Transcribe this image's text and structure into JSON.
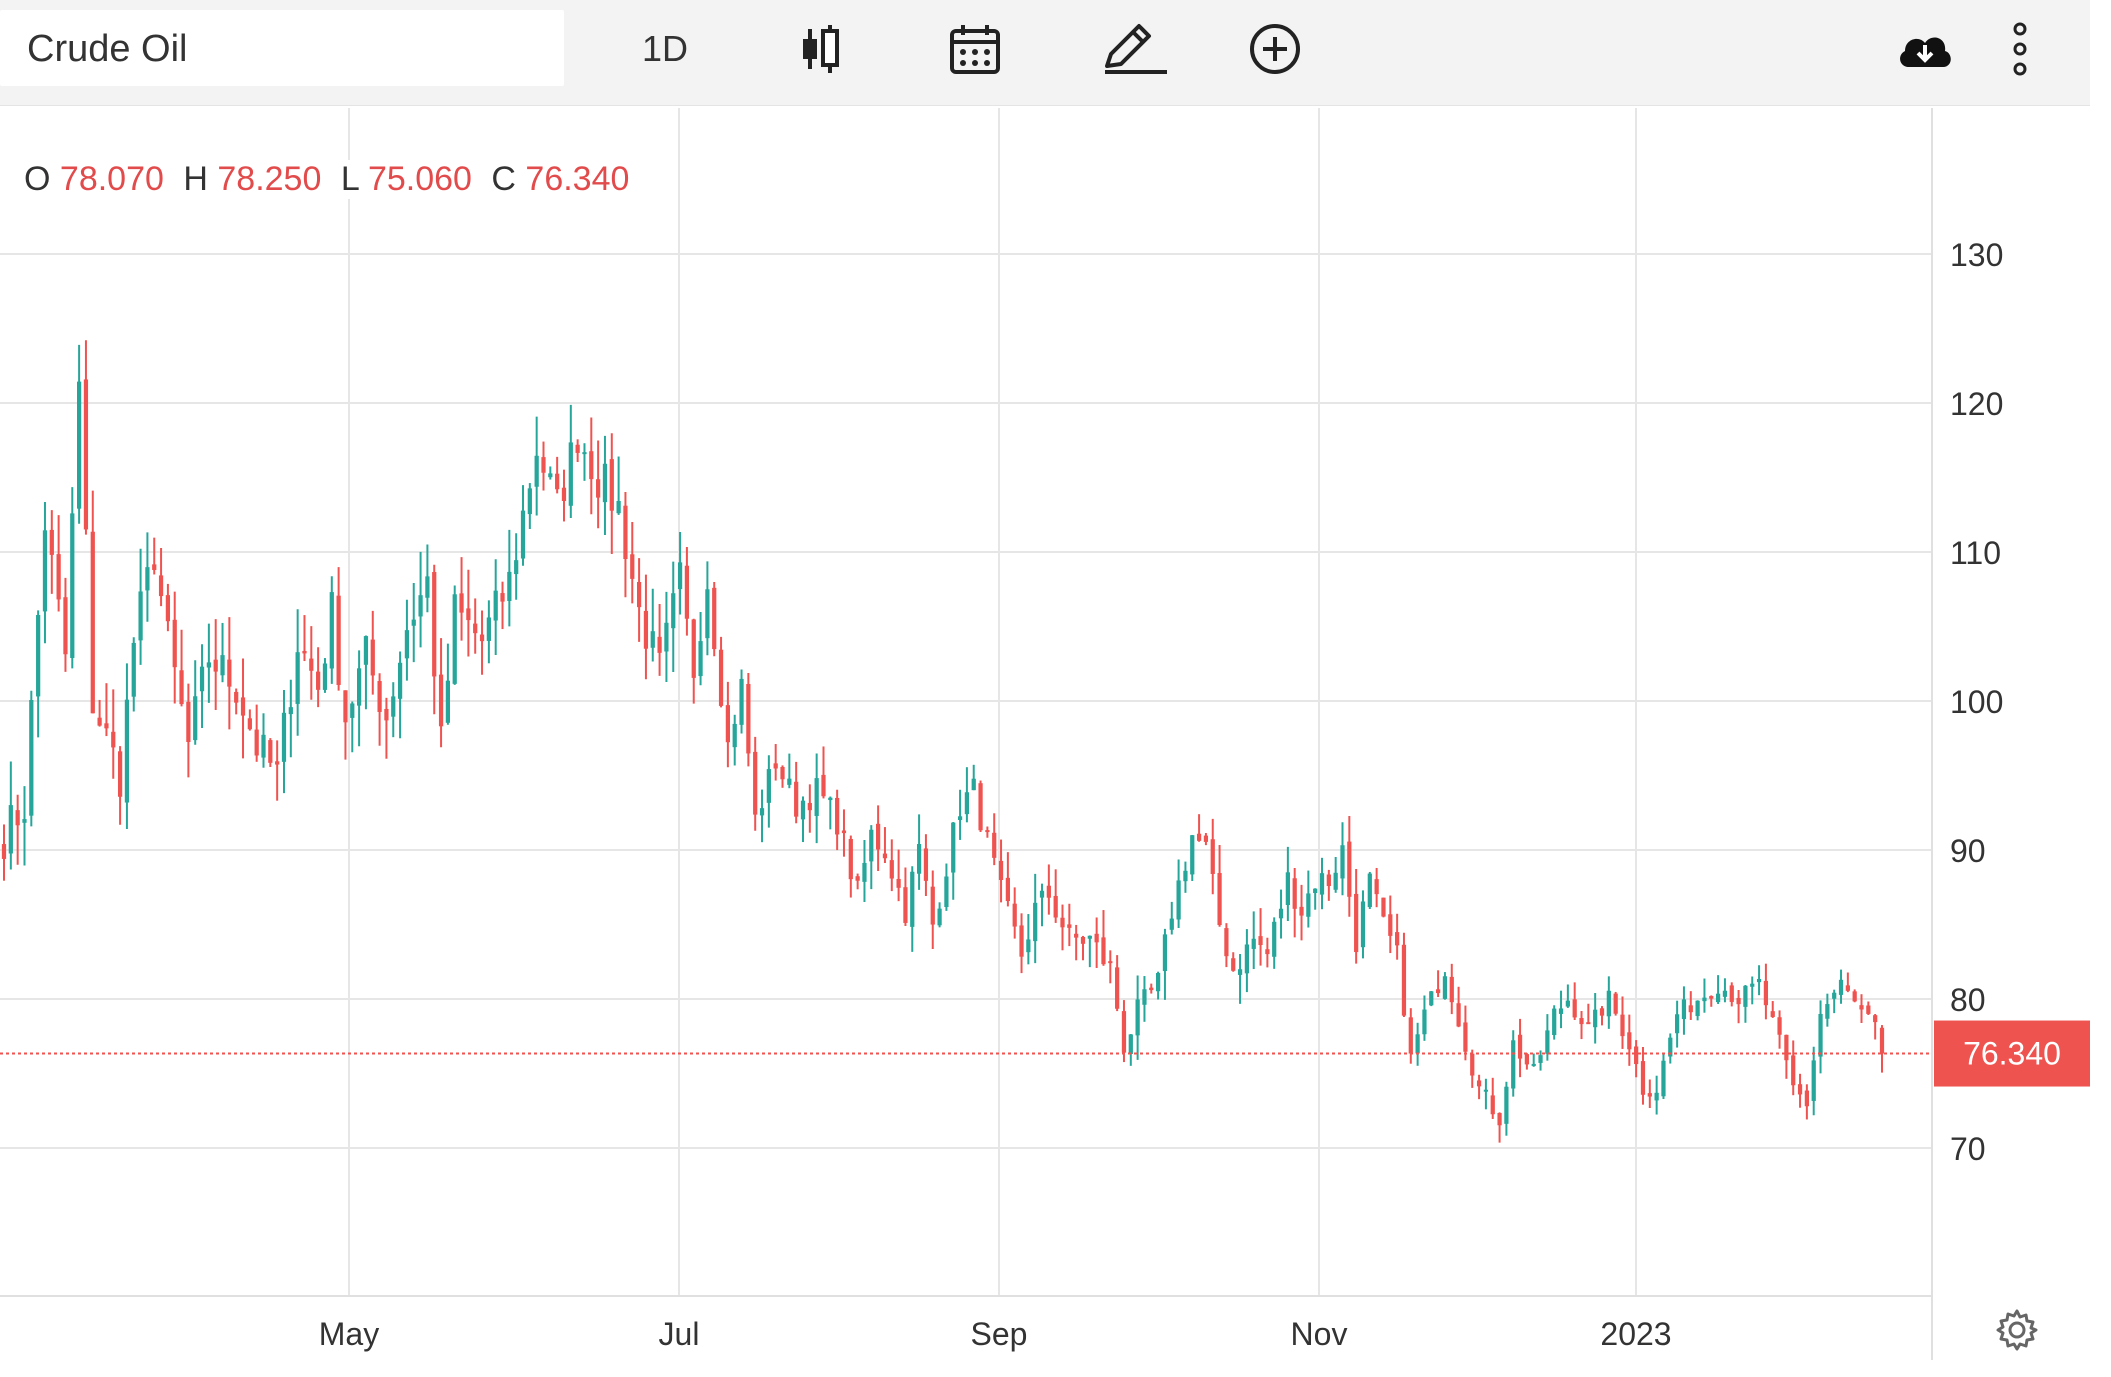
{
  "toolbar": {
    "symbol": "Crude Oil",
    "interval": "1D",
    "icons": [
      "candlestick-icon",
      "calendar-icon",
      "pencil-draw-icon",
      "add-circle-icon",
      "cloud-download-icon",
      "more-vertical-icon"
    ]
  },
  "ohlc": {
    "o_label": "O",
    "o_value": "78.070",
    "h_label": "H",
    "h_value": "78.250",
    "l_label": "L",
    "l_value": "75.060",
    "c_label": "C",
    "c_value": "76.340"
  },
  "colors": {
    "up": "#26a69a",
    "down": "#ef5350",
    "grid": "#e6e6e6",
    "price_tag": "#ef5350"
  },
  "chart_data": {
    "type": "candlestick",
    "title": "Crude Oil",
    "interval": "1D",
    "y_ticks": [
      130,
      120,
      110,
      100,
      90,
      80,
      70
    ],
    "ylim": [
      60,
      140
    ],
    "x_ticks": [
      "May",
      "Jul",
      "Sep",
      "Nov",
      "2023"
    ],
    "last_price": 76.34,
    "last_price_label": "76.340",
    "grid": true,
    "anchors": [
      [
        0,
        91
      ],
      [
        3,
        93
      ],
      [
        6,
        112
      ],
      [
        9,
        103
      ],
      [
        11,
        121
      ],
      [
        13,
        100
      ],
      [
        17,
        95
      ],
      [
        19,
        104
      ],
      [
        22,
        110
      ],
      [
        24,
        104
      ],
      [
        27,
        97
      ],
      [
        30,
        103
      ],
      [
        34,
        101
      ],
      [
        37,
        97
      ],
      [
        40,
        95
      ],
      [
        43,
        104
      ],
      [
        46,
        101
      ],
      [
        48,
        106
      ],
      [
        50,
        99
      ],
      [
        53,
        103
      ],
      [
        56,
        99
      ],
      [
        59,
        105
      ],
      [
        62,
        108
      ],
      [
        64,
        97
      ],
      [
        66,
        106
      ],
      [
        70,
        104
      ],
      [
        74,
        108
      ],
      [
        78,
        117
      ],
      [
        81,
        113
      ],
      [
        84,
        118
      ],
      [
        87,
        115
      ],
      [
        90,
        113
      ],
      [
        93,
        106
      ],
      [
        96,
        102
      ],
      [
        99,
        108
      ],
      [
        101,
        102
      ],
      [
        103,
        108
      ],
      [
        106,
        97
      ],
      [
        108,
        101
      ],
      [
        110,
        92
      ],
      [
        113,
        96
      ],
      [
        116,
        93
      ],
      [
        119,
        94
      ],
      [
        122,
        92
      ],
      [
        125,
        87
      ],
      [
        127,
        91
      ],
      [
        129,
        90
      ],
      [
        132,
        86
      ],
      [
        134,
        90
      ],
      [
        136,
        85
      ],
      [
        138,
        89
      ],
      [
        140,
        93
      ],
      [
        142,
        94
      ],
      [
        146,
        87
      ],
      [
        149,
        83
      ],
      [
        151,
        86
      ],
      [
        153,
        87
      ],
      [
        156,
        84
      ],
      [
        159,
        84
      ],
      [
        162,
        82
      ],
      [
        164,
        77
      ],
      [
        166,
        79
      ],
      [
        169,
        81
      ],
      [
        171,
        86
      ],
      [
        174,
        91
      ],
      [
        176,
        90
      ],
      [
        178,
        85
      ],
      [
        180,
        82
      ],
      [
        183,
        84
      ],
      [
        185,
        83
      ],
      [
        188,
        88
      ],
      [
        190,
        86
      ],
      [
        192,
        88
      ],
      [
        194,
        88
      ],
      [
        196,
        90
      ],
      [
        198,
        84
      ],
      [
        200,
        88
      ],
      [
        202,
        85
      ],
      [
        204,
        83
      ],
      [
        206,
        76
      ],
      [
        208,
        79
      ],
      [
        211,
        82
      ],
      [
        214,
        77
      ],
      [
        216,
        74
      ],
      [
        219,
        72
      ],
      [
        221,
        77
      ],
      [
        224,
        75
      ],
      [
        227,
        79
      ],
      [
        229,
        80
      ],
      [
        232,
        78
      ],
      [
        235,
        80
      ],
      [
        238,
        77
      ],
      [
        240,
        74
      ],
      [
        242,
        74
      ],
      [
        245,
        79
      ],
      [
        248,
        80
      ],
      [
        251,
        81
      ],
      [
        254,
        80
      ],
      [
        257,
        81
      ],
      [
        260,
        77
      ],
      [
        262,
        74
      ],
      [
        264,
        73
      ],
      [
        266,
        79
      ],
      [
        269,
        81
      ],
      [
        272,
        79
      ],
      [
        274,
        78
      ],
      [
        275,
        76
      ]
    ]
  }
}
